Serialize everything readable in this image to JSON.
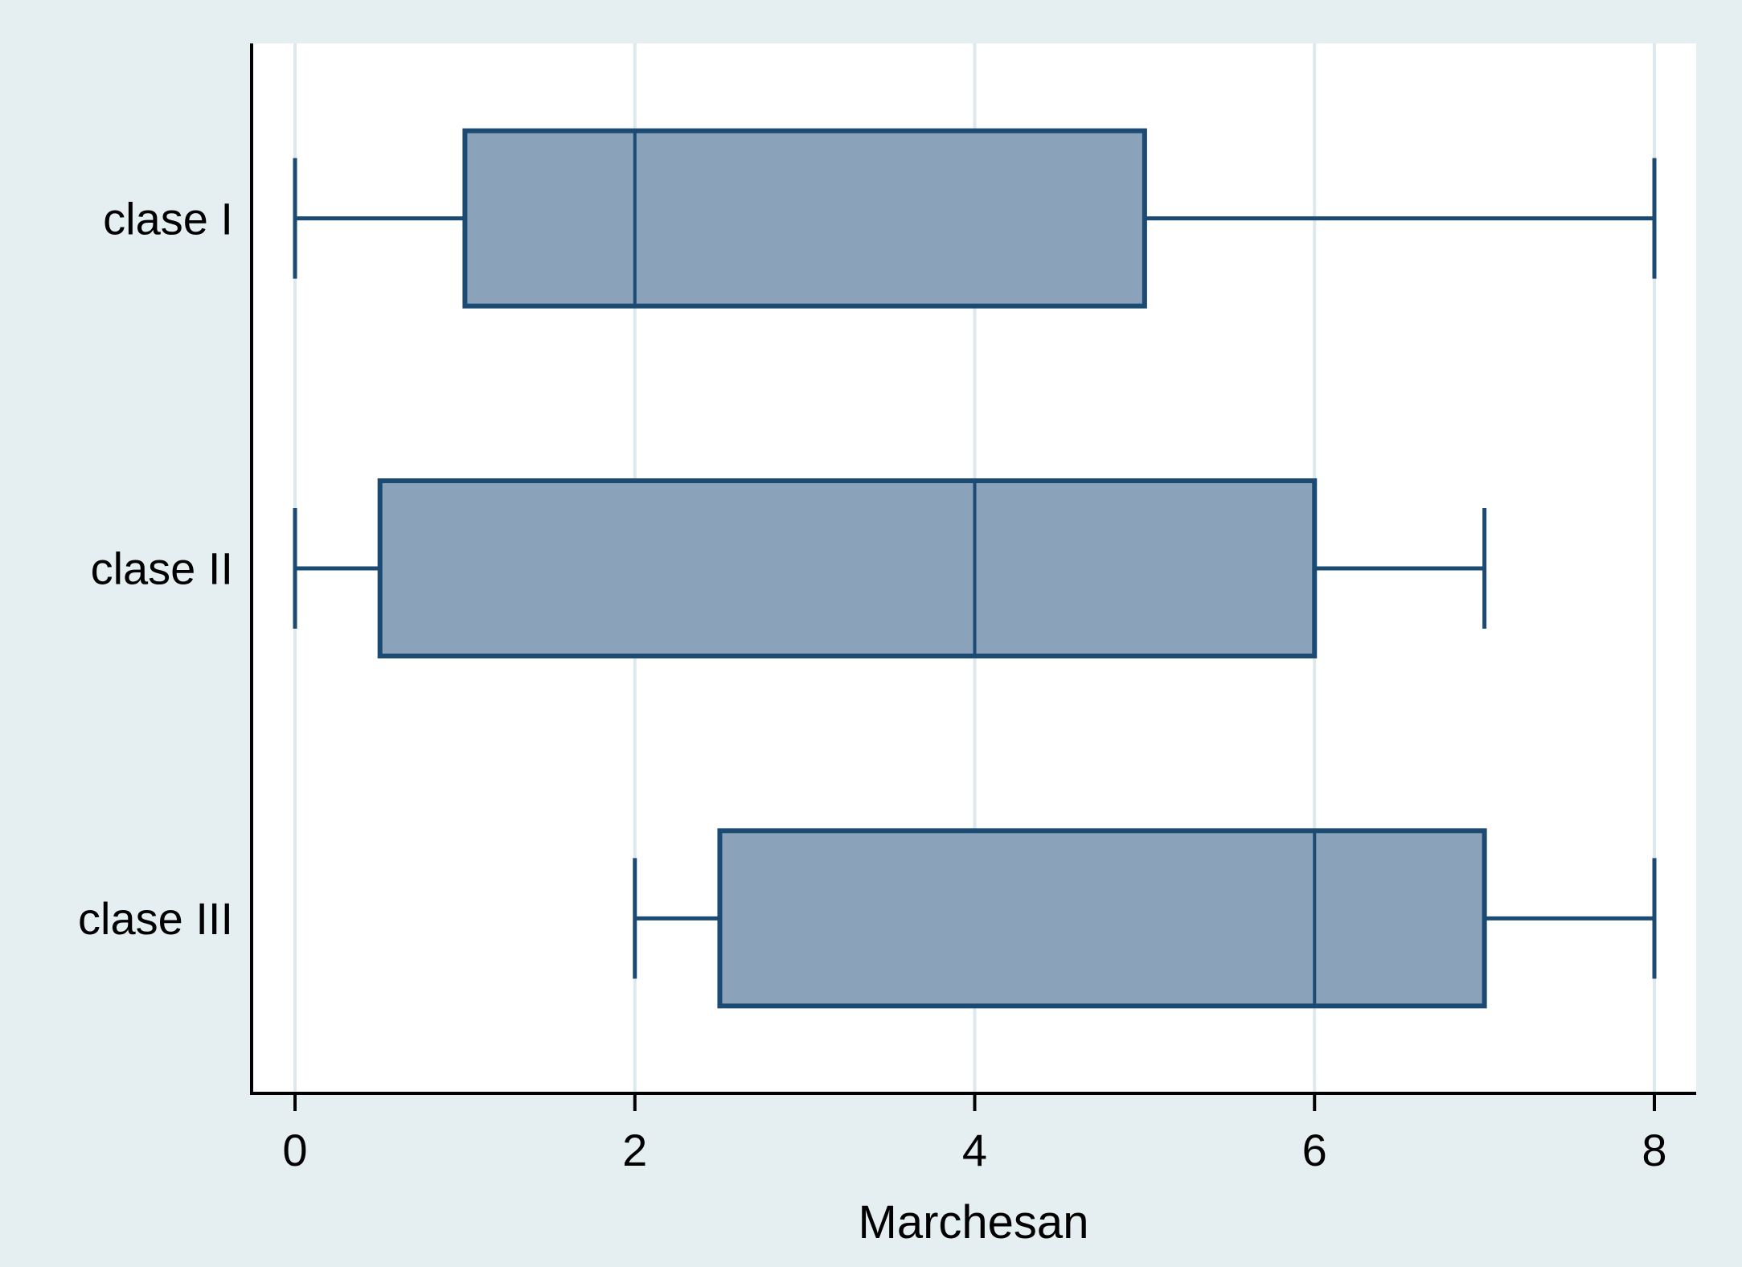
{
  "figure": {
    "background_color": "#e5eef0",
    "plot_background_color": "#ffffff",
    "axis_color": "#000000",
    "gridline_color": "#dde9ee",
    "box_fill_color": "#8ba3ba",
    "box_stroke_color": "#1b4a72",
    "text_color": "#000000"
  },
  "chart_data": {
    "type": "boxplot",
    "orientation": "horizontal",
    "title": "",
    "xlabel": "Marchesan",
    "ylabel": "",
    "xlim": [
      0,
      8
    ],
    "x_ticks": [
      "0",
      "2",
      "4",
      "6",
      "8"
    ],
    "x_tick_values": [
      0,
      2,
      4,
      6,
      8
    ],
    "grid": true,
    "legend": "none",
    "categories": [
      "clase I",
      "clase II",
      "clase III"
    ],
    "series": [
      {
        "name": "clase I",
        "whisker_low": 0,
        "q1": 1,
        "median": 2,
        "q3": 5,
        "whisker_high": 8,
        "outliers": []
      },
      {
        "name": "clase II",
        "whisker_low": 0,
        "q1": 0.5,
        "median": 4,
        "q3": 6,
        "whisker_high": 7,
        "outliers": []
      },
      {
        "name": "clase III",
        "whisker_low": 2,
        "q1": 2.5,
        "median": 6,
        "q3": 7,
        "whisker_high": 8,
        "outliers": []
      }
    ]
  }
}
